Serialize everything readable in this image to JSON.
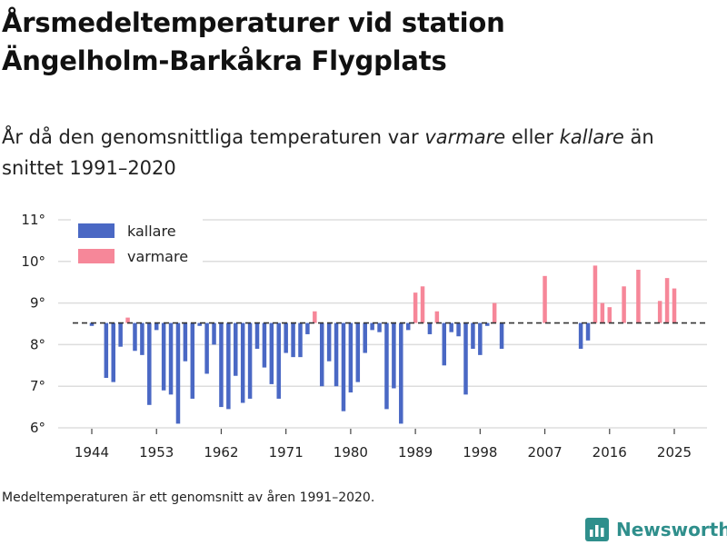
{
  "header": {
    "title_line1": "Årsmedeltemperaturer vid station",
    "title_line2": "Ängelholm-Barkåkra Flygplats",
    "subtitle_part1": "År då den genomsnittliga temperaturen var ",
    "subtitle_warm": "varmare",
    "subtitle_part2": " eller ",
    "subtitle_cold": "kallare",
    "subtitle_part3": " än snittet 1991–2020"
  },
  "footer": {
    "note": "Medeltemperaturen är ett genomsnitt av åren 1991–2020.",
    "brand": "Newsworthy"
  },
  "colors": {
    "colder": "#4a68c4",
    "warmer": "#f68799",
    "baseline": "#333333",
    "grid": "#dddddd",
    "brand": "#2f8f8c"
  },
  "chart_data": {
    "type": "bar",
    "baseline": 8.52,
    "ylim": [
      6,
      11
    ],
    "yticks": [
      6,
      7,
      8,
      9,
      10,
      11
    ],
    "ytick_labels": [
      "6°",
      "7°",
      "8°",
      "9°",
      "10°",
      "11°"
    ],
    "xticks": [
      1944,
      1953,
      1962,
      1971,
      1980,
      1989,
      1998,
      2007,
      2016,
      2025
    ],
    "xlim": [
      1940,
      2030
    ],
    "legend": [
      {
        "key": "colder",
        "label": "kallare"
      },
      {
        "key": "warmer",
        "label": "varmare"
      }
    ],
    "legend_position": "top-left",
    "years": [
      1944,
      1946,
      1947,
      1948,
      1949,
      1950,
      1951,
      1952,
      1953,
      1954,
      1955,
      1956,
      1957,
      1958,
      1959,
      1960,
      1961,
      1962,
      1963,
      1964,
      1965,
      1966,
      1967,
      1968,
      1969,
      1970,
      1971,
      1972,
      1973,
      1974,
      1975,
      1976,
      1977,
      1978,
      1979,
      1980,
      1981,
      1982,
      1983,
      1984,
      1985,
      1986,
      1987,
      1988,
      1989,
      1990,
      1991,
      1992,
      1993,
      1994,
      1995,
      1996,
      1997,
      1998,
      1999,
      2000,
      2001,
      2007,
      2012,
      2013,
      2014,
      2015,
      2016,
      2018,
      2020,
      2023,
      2024,
      2025
    ],
    "values": [
      8.45,
      7.2,
      7.1,
      7.95,
      8.65,
      7.85,
      7.75,
      6.55,
      8.35,
      6.9,
      6.8,
      6.1,
      7.6,
      6.7,
      8.45,
      7.3,
      8.0,
      6.5,
      6.45,
      7.25,
      6.6,
      6.7,
      7.9,
      7.45,
      7.05,
      6.7,
      7.8,
      7.7,
      7.7,
      8.25,
      8.8,
      7.0,
      7.6,
      7.0,
      6.4,
      6.85,
      7.1,
      7.8,
      8.35,
      8.3,
      6.45,
      6.95,
      6.1,
      8.35,
      9.25,
      9.4,
      8.25,
      8.8,
      7.5,
      8.3,
      8.2,
      6.8,
      7.9,
      7.75,
      8.45,
      9.0,
      7.9,
      9.65,
      7.9,
      8.1,
      9.9,
      9.0,
      8.9,
      9.4,
      9.8,
      9.05,
      9.6,
      9.35
    ]
  }
}
